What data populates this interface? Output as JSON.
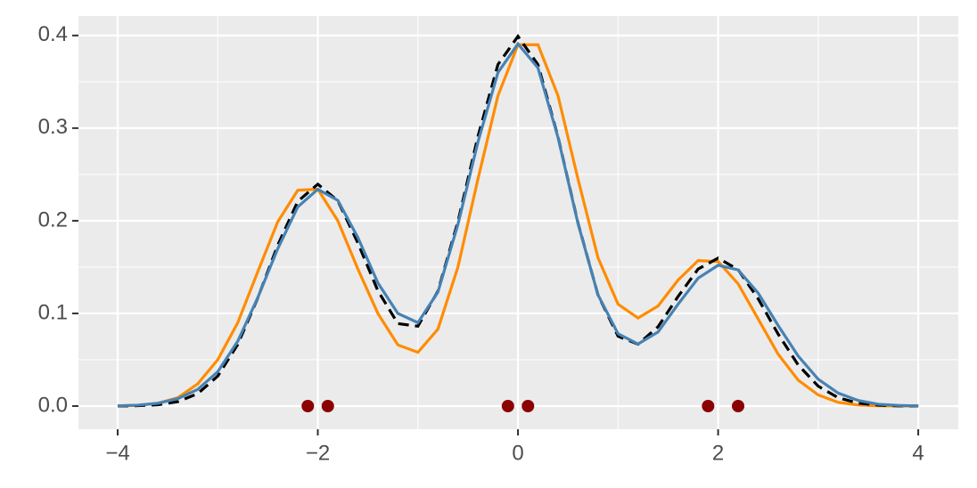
{
  "chart_data": {
    "type": "line",
    "x": [
      -4,
      -3.8,
      -3.6,
      -3.4,
      -3.2,
      -3,
      -2.8,
      -2.6,
      -2.4,
      -2.2,
      -2,
      -1.8,
      -1.6,
      -1.4,
      -1.2,
      -1,
      -0.8,
      -0.6,
      -0.4,
      -0.2,
      0,
      0.2,
      0.4,
      0.6,
      0.8,
      1,
      1.2,
      1.4,
      1.6,
      1.8,
      2,
      2.2,
      2.4,
      2.6,
      2.8,
      3,
      3.2,
      3.4,
      3.6,
      3.8,
      4
    ],
    "series": [
      {
        "color": "#ff8c00",
        "dash": "solid",
        "values": [
          0.0002,
          0.0008,
          0.003,
          0.009,
          0.024,
          0.05,
          0.09,
          0.145,
          0.199,
          0.233,
          0.234,
          0.2,
          0.148,
          0.1,
          0.066,
          0.058,
          0.083,
          0.15,
          0.245,
          0.335,
          0.39,
          0.39,
          0.335,
          0.245,
          0.16,
          0.11,
          0.095,
          0.108,
          0.136,
          0.157,
          0.156,
          0.132,
          0.094,
          0.056,
          0.028,
          0.012,
          0.004,
          0.0012,
          0.0003,
          0.0001,
          0
        ]
      },
      {
        "color": "#000000",
        "dash": "dashed",
        "values": [
          0.0001,
          0.0004,
          0.0014,
          0.0047,
          0.0134,
          0.0323,
          0.0666,
          0.1166,
          0.1738,
          0.221,
          0.2395,
          0.2216,
          0.1762,
          0.1245,
          0.089,
          0.0862,
          0.124,
          0.199,
          0.291,
          0.3687,
          0.3991,
          0.3685,
          0.2907,
          0.1975,
          0.1199,
          0.0754,
          0.0668,
          0.0856,
          0.1183,
          0.1479,
          0.1597,
          0.1473,
          0.1159,
          0.0777,
          0.0444,
          0.0215,
          0.009,
          0.0032,
          0.001,
          0.0002,
          0.0001
        ]
      },
      {
        "color": "#4682b4",
        "dash": "solid",
        "values": [
          0.0003,
          0.001,
          0.003,
          0.008,
          0.018,
          0.037,
          0.07,
          0.117,
          0.17,
          0.215,
          0.234,
          0.222,
          0.182,
          0.133,
          0.1,
          0.09,
          0.123,
          0.196,
          0.285,
          0.36,
          0.391,
          0.365,
          0.29,
          0.197,
          0.12,
          0.078,
          0.067,
          0.08,
          0.11,
          0.138,
          0.152,
          0.147,
          0.122,
          0.087,
          0.054,
          0.029,
          0.014,
          0.006,
          0.002,
          0.0007,
          0.0002
        ]
      }
    ],
    "points": {
      "color": "#8b0000",
      "x": [
        -2.1,
        -1.9,
        -0.1,
        0.1,
        1.9,
        2.2
      ],
      "values": [
        0,
        0,
        0,
        0,
        0,
        0
      ]
    },
    "xlim": [
      -4.392,
      4.4
    ],
    "ylim": [
      -0.025,
      0.421
    ],
    "xticks": [
      {
        "value": -4,
        "label": "−4"
      },
      {
        "value": -2,
        "label": "−2"
      },
      0,
      2,
      4
    ],
    "yticks": [
      {
        "value": 0,
        "label": "0.0"
      },
      {
        "value": 0.1,
        "label": "0.1"
      },
      {
        "value": 0.2,
        "label": "0.2"
      },
      {
        "value": 0.3,
        "label": "0.3"
      },
      {
        "value": 0.4,
        "label": "0.4"
      }
    ],
    "grid": true
  }
}
